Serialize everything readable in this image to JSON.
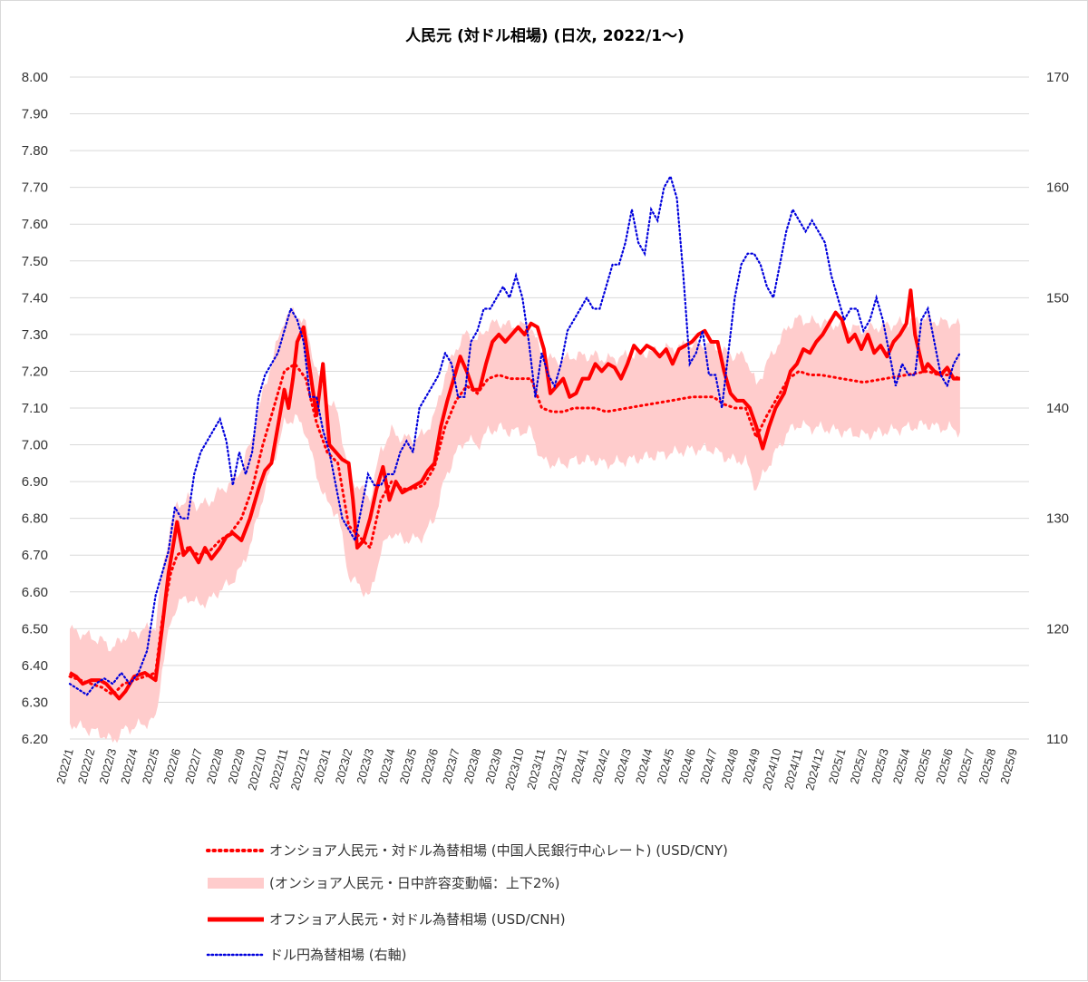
{
  "chart_data": {
    "type": "line",
    "title": "人民元 (対ドル相場) (日次, 2022/1～)",
    "y_left": {
      "min": 6.2,
      "max": 8.0,
      "step": 0.1,
      "ticks": [
        "6.20",
        "6.30",
        "6.40",
        "6.50",
        "6.60",
        "6.70",
        "6.80",
        "6.90",
        "7.00",
        "7.10",
        "7.20",
        "7.30",
        "7.40",
        "7.50",
        "7.60",
        "7.70",
        "7.80",
        "7.90",
        "8.00"
      ]
    },
    "y_right": {
      "min": 110,
      "max": 170,
      "step": 10,
      "ticks": [
        "110",
        "120",
        "130",
        "140",
        "150",
        "160",
        "170"
      ]
    },
    "x_categories": [
      "2022/1",
      "2022/2",
      "2022/3",
      "2022/4",
      "2022/5",
      "2022/6",
      "2022/7",
      "2022/8",
      "2022/9",
      "2022/10",
      "2022/11",
      "2022/12",
      "2023/1",
      "2023/2",
      "2023/3",
      "2023/4",
      "2023/5",
      "2023/6",
      "2023/7",
      "2023/8",
      "2023/9",
      "2023/10",
      "2023/11",
      "2023/12",
      "2024/1",
      "2024/2",
      "2024/3",
      "2024/4",
      "2024/5",
      "2024/6",
      "2024/7",
      "2024/8",
      "2024/9",
      "2024/10",
      "2024/11",
      "2024/12",
      "2025/1",
      "2025/2",
      "2025/3",
      "2025/4",
      "2025/5",
      "2025/6",
      "2025/7",
      "2025/8",
      "2025/9"
    ],
    "grid": true,
    "legend_position": "bottom",
    "series": [
      {
        "name": "オンショア人民元・対ドル為替相場 (中国人民銀行中心レート) (USD/CNY)",
        "axis": "left",
        "color": "#ff0000",
        "style": "dotted",
        "x": [
          0,
          0.5,
          1,
          1.5,
          2,
          2.5,
          3,
          3.5,
          4,
          4.3,
          4.7,
          5,
          5.5,
          6,
          6.5,
          7,
          7.5,
          8,
          8.5,
          9,
          9.5,
          10,
          10.5,
          11,
          11.5,
          12,
          12.5,
          13,
          13.5,
          14,
          14.5,
          15,
          15.5,
          16,
          16.5,
          17,
          17.5,
          18,
          18.5,
          19,
          19.5,
          20,
          20.5,
          21,
          21.5,
          22,
          22.5,
          23,
          23.5,
          24,
          24.5,
          25,
          26,
          27,
          28,
          29,
          30,
          30.5,
          31,
          31.5,
          32,
          32.5,
          33,
          33.5,
          34,
          34.5,
          35,
          36,
          37,
          38,
          39,
          40,
          40.5,
          41,
          41.5
        ],
        "values": [
          6.37,
          6.36,
          6.35,
          6.34,
          6.32,
          6.35,
          6.36,
          6.37,
          6.38,
          6.52,
          6.65,
          6.7,
          6.72,
          6.7,
          6.71,
          6.74,
          6.76,
          6.8,
          6.88,
          7.0,
          7.1,
          7.2,
          7.22,
          7.18,
          7.06,
          6.98,
          6.95,
          6.78,
          6.75,
          6.72,
          6.85,
          6.9,
          6.88,
          6.88,
          6.89,
          6.94,
          7.05,
          7.12,
          7.16,
          7.14,
          7.18,
          7.19,
          7.18,
          7.18,
          7.18,
          7.1,
          7.09,
          7.09,
          7.1,
          7.1,
          7.1,
          7.09,
          7.1,
          7.11,
          7.12,
          7.13,
          7.13,
          7.11,
          7.1,
          7.1,
          7.02,
          7.08,
          7.13,
          7.18,
          7.2,
          7.19,
          7.19,
          7.18,
          7.17,
          7.18,
          7.19,
          7.2,
          7.19,
          7.19,
          7.18
        ]
      },
      {
        "name": "(オンショア人民元・日中許容変動幅：上下2%)",
        "axis": "left",
        "color": "#ffcccc",
        "style": "band",
        "band_pct": 2
      },
      {
        "name": "オフショア人民元・対ドル為替相場 (USD/CNH)",
        "axis": "left",
        "color": "#ff0000",
        "style": "solid",
        "x": [
          0,
          0.3,
          0.6,
          1,
          1.4,
          1.7,
          2,
          2.3,
          2.6,
          3,
          3.5,
          4,
          4.3,
          4.6,
          4.8,
          5,
          5.3,
          5.6,
          6,
          6.3,
          6.6,
          7,
          7.3,
          7.6,
          8,
          8.4,
          8.8,
          9.1,
          9.4,
          9.7,
          10,
          10.2,
          10.4,
          10.6,
          10.9,
          11.2,
          11.5,
          11.8,
          12.1,
          12.4,
          12.7,
          13,
          13.2,
          13.4,
          13.7,
          14,
          14.3,
          14.6,
          14.9,
          15.2,
          15.5,
          15.8,
          16.1,
          16.4,
          16.7,
          17,
          17.3,
          17.6,
          17.9,
          18.2,
          18.5,
          18.8,
          19.1,
          19.4,
          19.7,
          20,
          20.3,
          20.6,
          20.9,
          21.2,
          21.5,
          21.8,
          22.1,
          22.4,
          22.7,
          23,
          23.3,
          23.6,
          23.9,
          24.2,
          24.5,
          24.8,
          25.1,
          25.4,
          25.7,
          26,
          26.3,
          26.6,
          26.9,
          27.2,
          27.5,
          27.8,
          28.1,
          28.4,
          28.7,
          29,
          29.3,
          29.6,
          29.9,
          30.2,
          30.5,
          30.8,
          31.1,
          31.4,
          31.7,
          32,
          32.3,
          32.6,
          32.9,
          33.1,
          33.3,
          33.6,
          33.9,
          34.2,
          34.5,
          34.8,
          35.1,
          35.4,
          35.7,
          36,
          36.3,
          36.6,
          36.9,
          37.2,
          37.5,
          37.8,
          38.1,
          38.4,
          38.7,
          39,
          39.2,
          39.4,
          39.6,
          39.8,
          40,
          40.3,
          40.6,
          40.9,
          41.2,
          41.5
        ],
        "values": [
          6.38,
          6.37,
          6.35,
          6.36,
          6.36,
          6.35,
          6.33,
          6.31,
          6.33,
          6.37,
          6.38,
          6.36,
          6.5,
          6.65,
          6.72,
          6.79,
          6.7,
          6.72,
          6.68,
          6.72,
          6.69,
          6.72,
          6.75,
          6.76,
          6.74,
          6.8,
          6.88,
          6.93,
          6.95,
          7.05,
          7.15,
          7.1,
          7.18,
          7.28,
          7.32,
          7.2,
          7.08,
          7.22,
          7.0,
          6.98,
          6.96,
          6.95,
          6.85,
          6.72,
          6.74,
          6.8,
          6.88,
          6.94,
          6.85,
          6.9,
          6.87,
          6.88,
          6.89,
          6.9,
          6.93,
          6.95,
          7.05,
          7.12,
          7.18,
          7.24,
          7.2,
          7.15,
          7.15,
          7.22,
          7.28,
          7.3,
          7.28,
          7.3,
          7.32,
          7.3,
          7.33,
          7.32,
          7.26,
          7.14,
          7.16,
          7.18,
          7.13,
          7.14,
          7.18,
          7.18,
          7.22,
          7.2,
          7.22,
          7.21,
          7.18,
          7.22,
          7.27,
          7.25,
          7.27,
          7.26,
          7.24,
          7.26,
          7.22,
          7.26,
          7.27,
          7.28,
          7.3,
          7.31,
          7.28,
          7.28,
          7.2,
          7.14,
          7.12,
          7.12,
          7.1,
          7.05,
          6.99,
          7.05,
          7.1,
          7.12,
          7.14,
          7.2,
          7.22,
          7.26,
          7.25,
          7.28,
          7.3,
          7.33,
          7.36,
          7.34,
          7.28,
          7.3,
          7.26,
          7.3,
          7.25,
          7.27,
          7.24,
          7.28,
          7.3,
          7.33,
          7.42,
          7.3,
          7.25,
          7.2,
          7.22,
          7.2,
          7.19,
          7.21,
          7.18,
          7.18
        ]
      },
      {
        "name": "ドル円為替相場 (右軸)",
        "axis": "right",
        "color": "#0000dd",
        "style": "dotted",
        "x": [
          0,
          0.4,
          0.8,
          1.2,
          1.6,
          2,
          2.4,
          2.8,
          3.2,
          3.6,
          4,
          4.3,
          4.6,
          4.9,
          5.2,
          5.5,
          5.8,
          6.1,
          6.4,
          6.7,
          7,
          7.3,
          7.6,
          7.9,
          8.2,
          8.5,
          8.8,
          9.1,
          9.4,
          9.7,
          10,
          10.3,
          10.6,
          10.9,
          11.2,
          11.5,
          11.8,
          12.1,
          12.4,
          12.7,
          13,
          13.3,
          13.6,
          13.9,
          14.2,
          14.5,
          14.8,
          15.1,
          15.4,
          15.7,
          16,
          16.3,
          16.6,
          16.9,
          17.2,
          17.5,
          17.8,
          18.1,
          18.4,
          18.7,
          19,
          19.3,
          19.6,
          19.9,
          20.2,
          20.5,
          20.8,
          21.1,
          21.4,
          21.7,
          22,
          22.3,
          22.6,
          22.9,
          23.2,
          23.5,
          23.8,
          24.1,
          24.4,
          24.7,
          25,
          25.3,
          25.6,
          25.9,
          26.2,
          26.5,
          26.8,
          27.1,
          27.4,
          27.7,
          28,
          28.3,
          28.6,
          28.9,
          29.2,
          29.5,
          29.8,
          30.1,
          30.4,
          30.7,
          31,
          31.3,
          31.6,
          31.9,
          32.2,
          32.5,
          32.8,
          33.1,
          33.4,
          33.7,
          34,
          34.3,
          34.6,
          34.9,
          35.2,
          35.5,
          35.8,
          36.1,
          36.4,
          36.7,
          37,
          37.3,
          37.6,
          37.9,
          38.2,
          38.5,
          38.8,
          39.1,
          39.4,
          39.7,
          40,
          40.3,
          40.6,
          40.9,
          41.2,
          41.5
        ],
        "values": [
          115,
          114.5,
          114,
          115,
          115.5,
          115,
          116,
          115,
          116,
          118,
          123,
          125,
          127,
          131,
          130,
          130,
          134,
          136,
          137,
          138,
          139,
          137,
          133,
          136,
          134,
          136,
          141,
          143,
          144,
          145,
          147,
          149,
          148,
          146,
          141,
          141,
          138,
          136,
          133,
          130,
          129,
          128,
          131,
          134,
          133,
          133,
          134,
          134,
          136,
          137,
          136,
          140,
          141,
          142,
          143,
          145,
          144,
          141,
          141,
          146,
          147,
          149,
          149,
          150,
          151,
          150,
          152,
          150,
          146,
          141,
          145,
          143,
          142,
          144,
          147,
          148,
          149,
          150,
          149,
          149,
          151,
          153,
          153,
          155,
          158,
          155,
          154,
          158,
          157,
          160,
          161,
          159,
          152,
          144,
          145,
          147,
          143,
          143,
          140,
          145,
          150,
          153,
          154,
          154,
          153,
          151,
          150,
          153,
          156,
          158,
          157,
          156,
          157,
          156,
          155,
          152,
          150,
          148,
          149,
          149,
          147,
          148,
          150,
          148,
          145,
          142,
          144,
          143,
          143,
          148,
          149,
          146,
          143,
          142,
          144,
          145
        ]
      }
    ]
  }
}
